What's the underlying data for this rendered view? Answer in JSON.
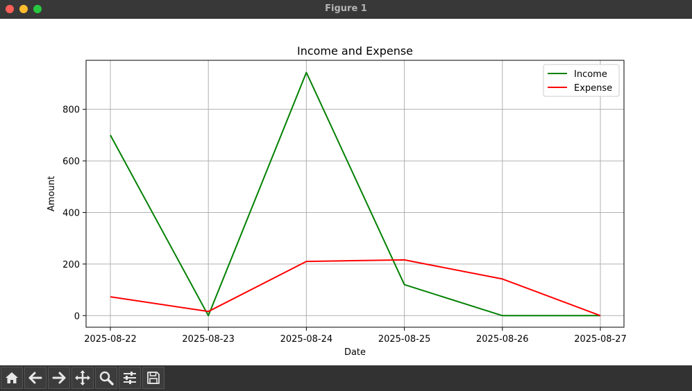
{
  "window": {
    "title": "Figure 1"
  },
  "toolbar": {
    "buttons": [
      {
        "name": "home-icon"
      },
      {
        "name": "back-arrow-icon"
      },
      {
        "name": "forward-arrow-icon"
      },
      {
        "name": "pan-icon"
      },
      {
        "name": "zoom-icon"
      },
      {
        "name": "configure-subplots-icon"
      },
      {
        "name": "save-icon"
      }
    ]
  },
  "chart_data": {
    "type": "line",
    "title": "Income and Expense",
    "xlabel": "Date",
    "ylabel": "Amount",
    "categories": [
      "2025-08-22",
      "2025-08-23",
      "2025-08-24",
      "2025-08-25",
      "2025-08-26",
      "2025-08-27"
    ],
    "series": [
      {
        "name": "Income",
        "color": "#008000",
        "values": [
          700,
          0,
          943,
          120,
          0,
          0
        ]
      },
      {
        "name": "Expense",
        "color": "#ff0000",
        "values": [
          73,
          16,
          210,
          216,
          142,
          0
        ]
      }
    ],
    "ylim": [
      -45,
      990
    ],
    "yticks": [
      0,
      200,
      400,
      600,
      800
    ],
    "grid": true,
    "legend": "top-right"
  }
}
